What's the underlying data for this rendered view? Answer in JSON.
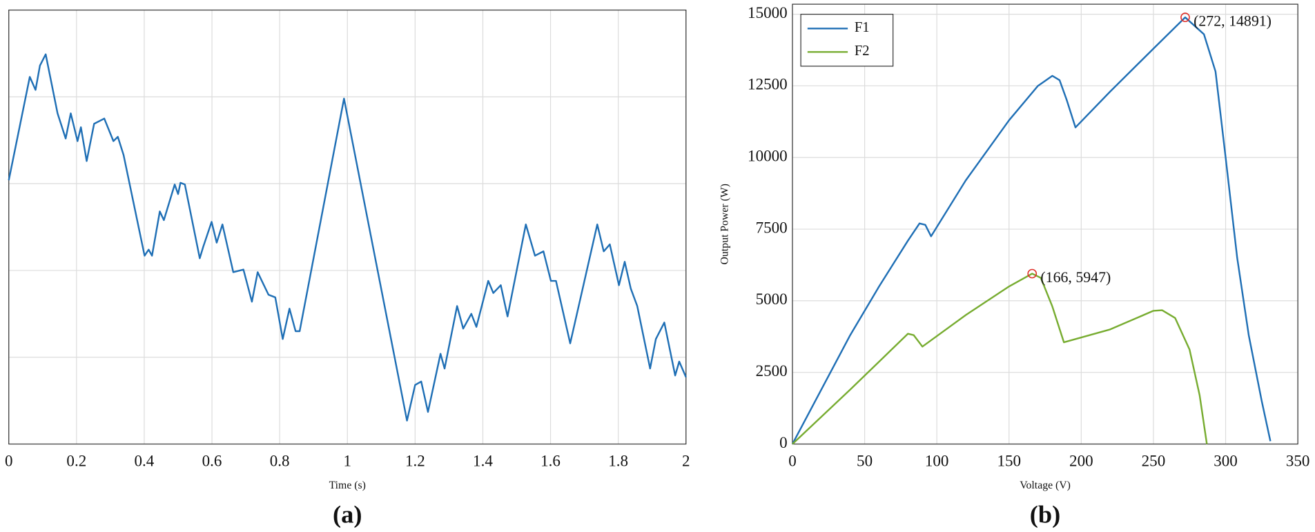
{
  "chart_data": [
    {
      "type": "line",
      "label": "(a)",
      "xlabel": "Time (s)",
      "xlim": [
        0,
        2
      ],
      "xticks": [
        0,
        0.2,
        0.4,
        0.6,
        0.8,
        1,
        1.2,
        1.4,
        1.6,
        1.8,
        2
      ],
      "ylim": [
        0,
        5
      ],
      "yticks": [
        1,
        2,
        3,
        4
      ],
      "ytick_labels": false,
      "grid": true,
      "x": [
        0,
        0.062,
        0.079,
        0.092,
        0.109,
        0.144,
        0.168,
        0.183,
        0.203,
        0.213,
        0.23,
        0.252,
        0.282,
        0.309,
        0.322,
        0.339,
        0.401,
        0.413,
        0.423,
        0.446,
        0.458,
        0.49,
        0.5,
        0.507,
        0.52,
        0.564,
        0.574,
        0.599,
        0.614,
        0.631,
        0.663,
        0.693,
        0.718,
        0.735,
        0.767,
        0.787,
        0.809,
        0.829,
        0.847,
        0.859,
        0.99,
        1.176,
        1.2,
        1.218,
        1.238,
        1.275,
        1.287,
        1.324,
        1.342,
        1.366,
        1.381,
        1.416,
        1.431,
        1.453,
        1.473,
        1.527,
        1.554,
        1.579,
        1.601,
        1.616,
        1.658,
        1.738,
        1.757,
        1.775,
        1.802,
        1.819,
        1.837,
        1.856,
        1.894,
        1.911,
        1.936,
        1.968,
        1.98,
        2
      ],
      "series": [
        {
          "color": "#1f6fb5",
          "values": [
            3.04,
            4.23,
            4.08,
            4.36,
            4.49,
            3.81,
            3.52,
            3.81,
            3.49,
            3.65,
            3.26,
            3.69,
            3.75,
            3.49,
            3.54,
            3.33,
            2.17,
            2.24,
            2.17,
            2.68,
            2.58,
            2.99,
            2.88,
            3.01,
            2.99,
            2.14,
            2.27,
            2.56,
            2.32,
            2.53,
            1.98,
            2.01,
            1.64,
            1.98,
            1.72,
            1.69,
            1.21,
            1.56,
            1.3,
            1.3,
            3.98,
            0.27,
            0.68,
            0.72,
            0.37,
            1.04,
            0.87,
            1.59,
            1.33,
            1.5,
            1.35,
            1.88,
            1.74,
            1.83,
            1.47,
            2.53,
            2.17,
            2.22,
            1.88,
            1.88,
            1.16,
            2.53,
            2.22,
            2.3,
            1.83,
            2.1,
            1.79,
            1.59,
            0.87,
            1.21,
            1.4,
            0.79,
            0.95,
            0.77
          ]
        }
      ]
    },
    {
      "type": "line",
      "label": "(b)",
      "xlabel": "Voltage (V)",
      "ylabel": "Output Power (W)",
      "xlim": [
        0,
        350
      ],
      "xticks": [
        0,
        50,
        100,
        150,
        200,
        250,
        300,
        350
      ],
      "ylim": [
        0,
        15000
      ],
      "yticks": [
        0,
        2500,
        5000,
        7500,
        10000,
        12500,
        15000
      ],
      "grid": true,
      "legend": "northwest",
      "series": [
        {
          "name": "F1",
          "color": "#1f6fb5",
          "x": [
            0,
            20,
            40,
            60,
            80,
            88,
            92,
            96,
            120,
            150,
            170,
            180,
            185,
            190,
            196,
            220,
            250,
            272,
            285,
            293,
            300,
            308,
            316,
            325,
            331
          ],
          "values": [
            0,
            1900,
            3800,
            5500,
            7100,
            7700,
            7650,
            7250,
            9200,
            11300,
            12500,
            12850,
            12700,
            12000,
            11050,
            12300,
            13800,
            14891,
            14300,
            13000,
            10000,
            6500,
            3800,
            1500,
            100
          ]
        },
        {
          "name": "F2",
          "color": "#77ac30",
          "x": [
            0,
            40,
            80,
            84,
            90,
            120,
            150,
            166,
            172,
            180,
            188,
            220,
            250,
            256,
            265,
            275,
            282,
            287
          ],
          "values": [
            0,
            1900,
            3850,
            3800,
            3400,
            4500,
            5500,
            5947,
            5800,
            4800,
            3550,
            4000,
            4650,
            4670,
            4400,
            3300,
            1700,
            0
          ]
        }
      ],
      "annotations": [
        {
          "text": "(272, 14891)",
          "x": 272,
          "y": 14891
        },
        {
          "text": "(166, 5947)",
          "x": 166,
          "y": 5947
        }
      ]
    }
  ]
}
